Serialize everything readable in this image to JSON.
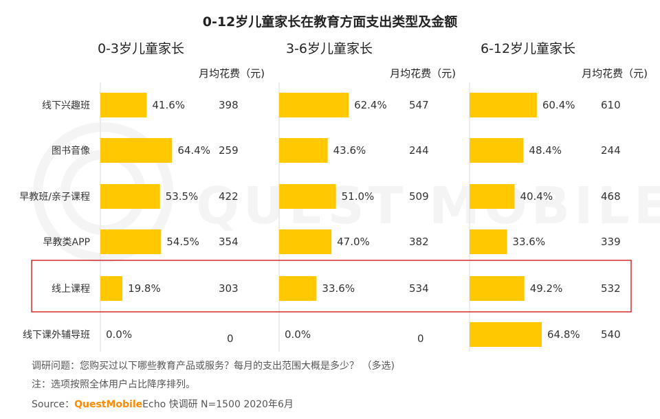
{
  "chart_data": {
    "type": "bar",
    "title": "0-12岁儿童家长在教育方面支出类型及金额",
    "categories": [
      "线下兴趣班",
      "图书音像",
      "早教班/亲子课程",
      "早教类APP",
      "线上课程",
      "线下课外辅导班"
    ],
    "value_header": "月均花费（元)",
    "highlight_category": "线上课程",
    "panels": [
      {
        "name": "0-3岁儿童家长",
        "percent": [
          41.6,
          64.4,
          53.5,
          54.5,
          19.8,
          0.0
        ],
        "percent_labels": [
          "41.6%",
          "64.4%",
          "53.5%",
          "54.5%",
          "19.8%",
          "0.0%"
        ],
        "amount": [
          398,
          259,
          422,
          354,
          303,
          0
        ],
        "xlim": [
          0,
          100
        ]
      },
      {
        "name": "3-6岁儿童家长",
        "percent": [
          62.4,
          43.6,
          51.0,
          47.0,
          33.6,
          0.0
        ],
        "percent_labels": [
          "62.4%",
          "43.6%",
          "51.0%",
          "47.0%",
          "33.6%",
          "0.0%"
        ],
        "amount": [
          547,
          244,
          509,
          382,
          534,
          0
        ],
        "xlim": [
          0,
          100
        ]
      },
      {
        "name": "6-12岁儿童家长",
        "percent": [
          60.4,
          48.4,
          40.4,
          33.6,
          49.2,
          64.8
        ],
        "percent_labels": [
          "60.4%",
          "48.4%",
          "40.4%",
          "33.6%",
          "49.2%",
          "64.8%"
        ],
        "amount": [
          610,
          244,
          468,
          339,
          532,
          540
        ],
        "xlim": [
          0,
          100
        ]
      }
    ],
    "bar_color": "#FFC800",
    "highlight_color": "#D02B2B"
  },
  "watermark": "QUEST MOBILE",
  "footer": {
    "question": "调研问题：您购买过以下哪些教育产品或服务？每月的支出范围大概是多少？ （多选)",
    "note": "注：选项按照全体用户占比降序排列。",
    "source_label": "Source：",
    "source_brand": "QuestMobile",
    "source_rest": "Echo 快调研 N=1500 2020年6月"
  }
}
